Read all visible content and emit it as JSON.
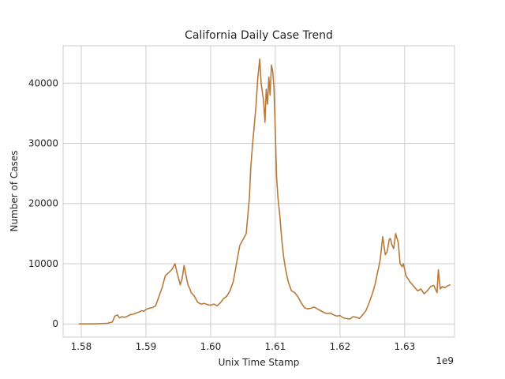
{
  "chart_data": {
    "type": "line",
    "title": "California Daily Case Trend",
    "xlabel": "Unix Time Stamp",
    "ylabel": "Number of Cases",
    "x_offset_label": "1e9",
    "xlim": [
      1.5772,
      1.6377
    ],
    "ylim": [
      -2200,
      46200
    ],
    "x_ticks": [
      1.58,
      1.59,
      1.6,
      1.61,
      1.62,
      1.63
    ],
    "x_tick_labels": [
      "1.58",
      "1.59",
      "1.60",
      "1.61",
      "1.62",
      "1.63"
    ],
    "y_ticks": [
      0,
      10000,
      20000,
      30000,
      40000
    ],
    "y_tick_labels": [
      "0",
      "10000",
      "20000",
      "30000",
      "40000"
    ],
    "grid": true,
    "series": [
      {
        "color": "#b87a3a",
        "x": [
          1.5797,
          1.582,
          1.584,
          1.5848,
          1.5852,
          1.5856,
          1.5859,
          1.5863,
          1.5866,
          1.587,
          1.5875,
          1.588,
          1.5885,
          1.589,
          1.5893,
          1.5897,
          1.59,
          1.5905,
          1.591,
          1.5915,
          1.592,
          1.5925,
          1.593,
          1.5935,
          1.594,
          1.5945,
          1.5948,
          1.595,
          1.5953,
          1.5956,
          1.5959,
          1.5962,
          1.5965,
          1.5968,
          1.597,
          1.5975,
          1.598,
          1.5985,
          1.599,
          1.5995,
          1.6,
          1.6005,
          1.601,
          1.6015,
          1.602,
          1.6025,
          1.603,
          1.6035,
          1.604,
          1.6045,
          1.605,
          1.6055,
          1.606,
          1.6062,
          1.6065,
          1.607,
          1.6073,
          1.6076,
          1.6078,
          1.608,
          1.6082,
          1.6084,
          1.6086,
          1.6088,
          1.609,
          1.6092,
          1.6094,
          1.6096,
          1.6098,
          1.61,
          1.6102,
          1.6104,
          1.6107,
          1.611,
          1.6113,
          1.6116,
          1.612,
          1.6125,
          1.613,
          1.6135,
          1.614,
          1.6145,
          1.615,
          1.6155,
          1.616,
          1.6165,
          1.617,
          1.6175,
          1.618,
          1.6185,
          1.619,
          1.6195,
          1.62,
          1.6205,
          1.621,
          1.6215,
          1.622,
          1.6225,
          1.623,
          1.6235,
          1.624,
          1.6245,
          1.625,
          1.6254,
          1.6258,
          1.6262,
          1.6266,
          1.627,
          1.6273,
          1.6276,
          1.6278,
          1.628,
          1.6283,
          1.6286,
          1.629,
          1.6293,
          1.6296,
          1.6298,
          1.63,
          1.6302,
          1.6305,
          1.6308,
          1.6312,
          1.6316,
          1.632,
          1.6325,
          1.633,
          1.6335,
          1.634,
          1.6345,
          1.635,
          1.6352,
          1.6355,
          1.6358,
          1.6362,
          1.6366,
          1.637
        ],
        "y": [
          0,
          0,
          100,
          300,
          1300,
          1500,
          1000,
          1200,
          1100,
          1200,
          1500,
          1600,
          1800,
          2000,
          2200,
          2100,
          2400,
          2600,
          2700,
          3000,
          4500,
          6000,
          8000,
          8500,
          9000,
          10000,
          8500,
          7800,
          6500,
          7500,
          9700,
          8000,
          6500,
          5800,
          5200,
          4600,
          3600,
          3300,
          3400,
          3200,
          3100,
          3300,
          3000,
          3500,
          4200,
          4600,
          5500,
          7000,
          10000,
          13000,
          14000,
          15000,
          21000,
          26000,
          30000,
          36000,
          41000,
          44000,
          40000,
          38500,
          37000,
          33500,
          39000,
          36500,
          41000,
          38000,
          43000,
          42000,
          39000,
          32000,
          24500,
          21000,
          18000,
          14000,
          11000,
          9000,
          7000,
          5500,
          5200,
          4500,
          3500,
          2700,
          2500,
          2600,
          2800,
          2500,
          2200,
          1900,
          1700,
          1800,
          1500,
          1300,
          1400,
          1000,
          900,
          800,
          1200,
          1100,
          900,
          1500,
          2200,
          3500,
          5000,
          6500,
          8500,
          10500,
          14500,
          11500,
          12000,
          14000,
          14200,
          13200,
          12500,
          15000,
          13500,
          10000,
          9500,
          10000,
          9000,
          8000,
          7500,
          7000,
          6500,
          6000,
          5500,
          5800,
          5000,
          5500,
          6200,
          6400,
          5200,
          9000,
          5800,
          6200,
          6000,
          6300,
          6500
        ]
      }
    ]
  }
}
